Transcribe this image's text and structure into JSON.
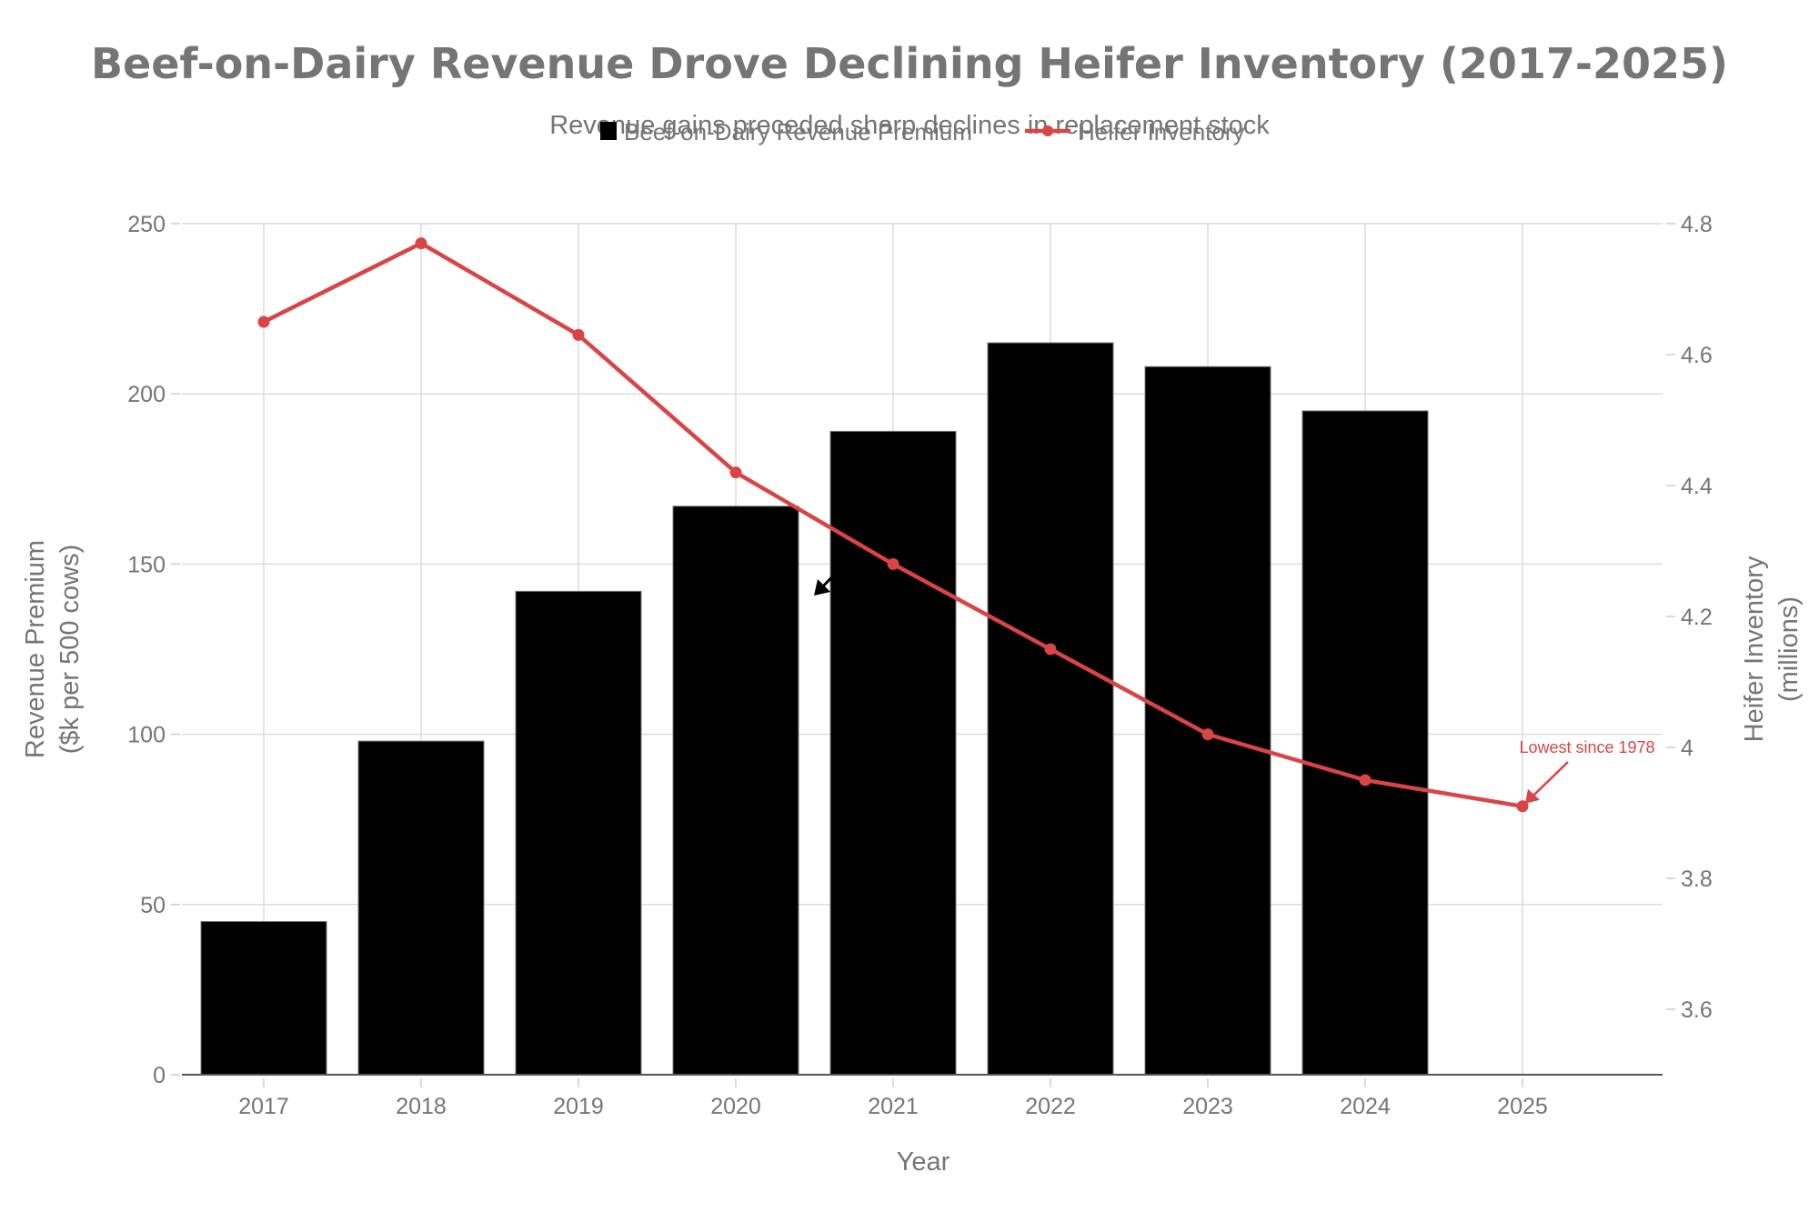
{
  "chart_data": {
    "type": "bar",
    "title": "Beef-on-Dairy Revenue Drove Declining Heifer Inventory (2017-2025)",
    "subtitle": "Revenue gains preceded sharp declines in replacement stock",
    "xlabel": "Year",
    "ylabel_lines": [
      "Revenue Premium",
      "($k per 500 cows)"
    ],
    "y2label_lines": [
      "Heifer Inventory",
      "(millions)"
    ],
    "categories": [
      "2017",
      "2018",
      "2019",
      "2020",
      "2021",
      "2022",
      "2023",
      "2024",
      "2025"
    ],
    "ylim": [
      0,
      250
    ],
    "yticks": [
      "0",
      "50",
      "100",
      "150",
      "200",
      "250"
    ],
    "y2lim": [
      3.5,
      4.8
    ],
    "y2ticks": [
      "3.6",
      "3.8",
      "4",
      "4.2",
      "4.4",
      "4.6",
      "4.8"
    ],
    "grid": true,
    "legend_position": "top-center",
    "series": [
      {
        "name": "Beef-on-Dairy Revenue Premium",
        "type": "bar",
        "axis": "left",
        "color": "#000000",
        "values": [
          45,
          98,
          142,
          167,
          189,
          215,
          208,
          195,
          null
        ]
      },
      {
        "name": "Heifer Inventory",
        "type": "line",
        "axis": "right",
        "color": "#d94446",
        "values": [
          4.65,
          4.77,
          4.63,
          4.42,
          4.28,
          4.15,
          4.02,
          3.95,
          3.91
        ]
      }
    ],
    "annotations": [
      {
        "text": "Lowest since 1978",
        "target_category": "2025",
        "series": "Heifer Inventory",
        "color": "#d94446"
      },
      {
        "text": "",
        "target_category": "2020",
        "series": "Beef-on-Dairy Revenue Premium",
        "color": "#000000"
      }
    ]
  }
}
